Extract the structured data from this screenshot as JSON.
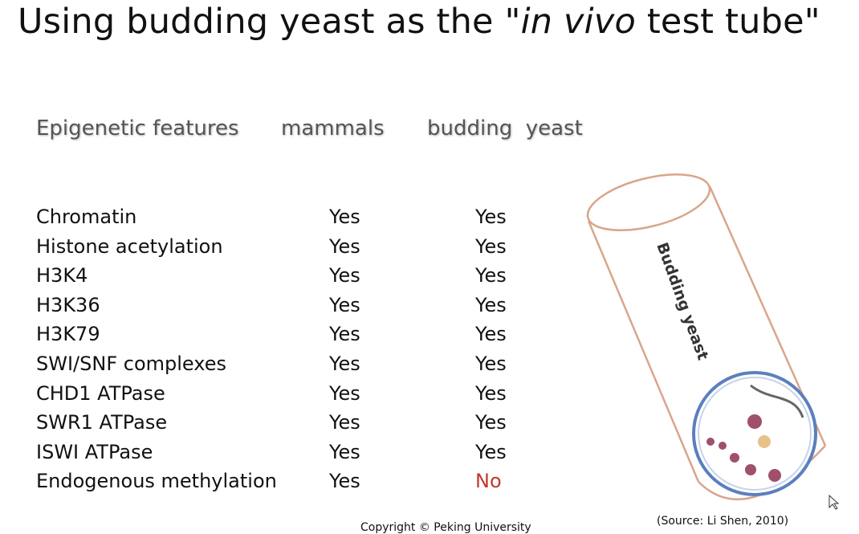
{
  "header": {
    "title": {
      "before": "Using budding yeast as the \"",
      "italic": "in vivo",
      "after": " test tube\""
    }
  },
  "table": {
    "columns": [
      "Epigenetic features",
      "mammals",
      "budding  yeast"
    ],
    "rows": [
      [
        "Chromatin",
        "Yes",
        "Yes"
      ],
      [
        "Histone acetylation",
        "Yes",
        "Yes"
      ],
      [
        "H3K4",
        "Yes",
        "Yes"
      ],
      [
        "H3K36",
        "Yes",
        "Yes"
      ],
      [
        "H3K79",
        "Yes",
        "Yes"
      ],
      [
        "SWI/SNF complexes",
        "Yes",
        "Yes"
      ],
      [
        "CHD1 ATPase",
        "Yes",
        "Yes"
      ],
      [
        "SWR1 ATPase",
        "Yes",
        "Yes"
      ],
      [
        "ISWI ATPase",
        "Yes",
        "Yes"
      ],
      [
        "Endogenous methylation",
        "Yes",
        "No"
      ]
    ]
  },
  "figure": {
    "tube_label": "Budding yeast",
    "source": "(Source: Li Shen, 2010)"
  },
  "footer": {
    "copyright": "Copyright © Peking University"
  }
}
